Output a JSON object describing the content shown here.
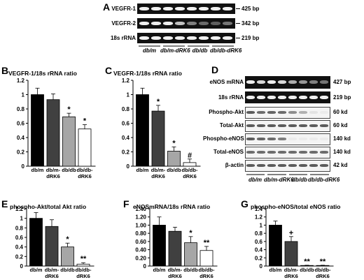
{
  "panels": {
    "A": {
      "letter": "A",
      "rows": [
        {
          "label": "VEGFR-1",
          "size": "425 bp"
        },
        {
          "label": "VEGFR-2",
          "size": "342 bp"
        },
        {
          "label": "18s rRNA",
          "size": "219 bp"
        }
      ],
      "groups": [
        "db/m",
        "db/m-dRK6",
        "db/db",
        "db/db-dRK6"
      ]
    },
    "D": {
      "letter": "D",
      "rows": [
        {
          "label": "eNOS mRNA",
          "size": "427 bp"
        },
        {
          "label": "18s rRNA",
          "size": "219 bp"
        },
        {
          "label": "Phospho-Akt",
          "size": "60 kd"
        },
        {
          "label": "Total-Akt",
          "size": "60 kd"
        },
        {
          "label": "Phospho-eNOS",
          "size": "140 kd"
        },
        {
          "label": "Total-eNOS",
          "size": "140 kd"
        },
        {
          "label": "β-actin",
          "size": "42 kd"
        }
      ],
      "groups": [
        "db/m",
        "db/m-dRK6",
        "db/db",
        "db/db-dRK6"
      ]
    }
  },
  "colors": {
    "black_bar": "#000000",
    "dark_gray_bar": "#404040",
    "light_gray_bar": "#a6a6a6",
    "white_bar": "#ffffff"
  },
  "chart_data": [
    {
      "panel": "B",
      "type": "bar",
      "title": "VEGFR-1/18s rRNA ratio",
      "categories": [
        "db/m",
        "db/m-\ndRK6",
        "db/db",
        "db/db-\ndRK6"
      ],
      "values": [
        1.0,
        0.93,
        0.69,
        0.52
      ],
      "errors": [
        0.09,
        0.08,
        0.05,
        0.06
      ],
      "annotations": [
        "",
        "",
        "*",
        "*"
      ],
      "ylim": [
        0,
        1.2
      ],
      "yticks": [
        0,
        0.2,
        0.4,
        0.6,
        0.8,
        1,
        1.2
      ],
      "ytick_labels": [
        "0",
        "0.2",
        "0.4",
        "0.6",
        "0.8",
        "1",
        "1.2"
      ]
    },
    {
      "panel": "C",
      "type": "bar",
      "title": "VEGFR-1/18s rRNA ratio",
      "categories": [
        "db/m",
        "db/m-\ndRK6",
        "db/db",
        "db/db-\ndRK6"
      ],
      "values": [
        1.0,
        0.77,
        0.21,
        0.05
      ],
      "errors": [
        0.09,
        0.08,
        0.06,
        0.05
      ],
      "annotations": [
        "",
        "*",
        "*",
        "#"
      ],
      "ylim": [
        0,
        1.2
      ],
      "yticks": [
        0,
        0.2,
        0.4,
        0.6,
        0.8,
        1,
        1.2
      ],
      "ytick_labels": [
        "0",
        "0.2",
        "0.4",
        "0.6",
        "0.8",
        "1",
        "1.2"
      ]
    },
    {
      "panel": "E",
      "type": "bar",
      "title": "phospho-Akt/total Akt ratio",
      "categories": [
        "db/m",
        "db/m-\ndRK6",
        "db/db",
        "db/db-\ndRK6"
      ],
      "values": [
        1.0,
        0.83,
        0.4,
        0.04
      ],
      "errors": [
        0.12,
        0.14,
        0.08,
        0.03
      ],
      "annotations": [
        "",
        "",
        "*",
        "**"
      ],
      "ylim": [
        0,
        1.2
      ],
      "yticks": [
        0,
        0.2,
        0.4,
        0.6,
        0.8,
        1,
        1.2
      ],
      "ytick_labels": [
        "0",
        "0.2",
        "0.4",
        "0.6",
        "0.8",
        "1",
        "1.2"
      ]
    },
    {
      "panel": "F",
      "type": "bar",
      "title": "eNOSmRNA/18s rRNA ratio",
      "categories": [
        "db/m",
        "db/m-\ndRK6",
        "db/db",
        "db/db-\ndRK6"
      ],
      "values": [
        1.0,
        0.85,
        0.57,
        0.38
      ],
      "errors": [
        0.2,
        0.1,
        0.15,
        0.1
      ],
      "annotations": [
        "",
        "",
        "*",
        "**"
      ],
      "ylim": [
        0,
        1.4
      ],
      "yticks": [
        0,
        0.2,
        0.4,
        0.6,
        0.8,
        1,
        1.2,
        1.4
      ],
      "ytick_labels": [
        "0",
        "0.20",
        "0.40",
        "0.60",
        "0.80",
        "1.00",
        "1.20",
        "1.40"
      ]
    },
    {
      "panel": "G",
      "type": "bar",
      "title": "phospho-eNOS/total eNOS ratio",
      "categories": [
        "db/m",
        "db/m-\ndRK6",
        "db/db",
        "db/db-\ndRK6"
      ],
      "values": [
        1.0,
        0.6,
        0.01,
        0.01
      ],
      "errors": [
        0.1,
        0.12,
        0.01,
        0.01
      ],
      "annotations": [
        "",
        "+",
        "**",
        "**"
      ],
      "ylim": [
        0,
        1.4
      ],
      "yticks": [
        0,
        0.2,
        0.4,
        0.6,
        0.8,
        1,
        1.2,
        1.4
      ],
      "ytick_labels": [
        "0",
        "0.2",
        "0.4",
        "0.6",
        "0.8",
        "1",
        "1.2",
        "1.4"
      ]
    }
  ]
}
